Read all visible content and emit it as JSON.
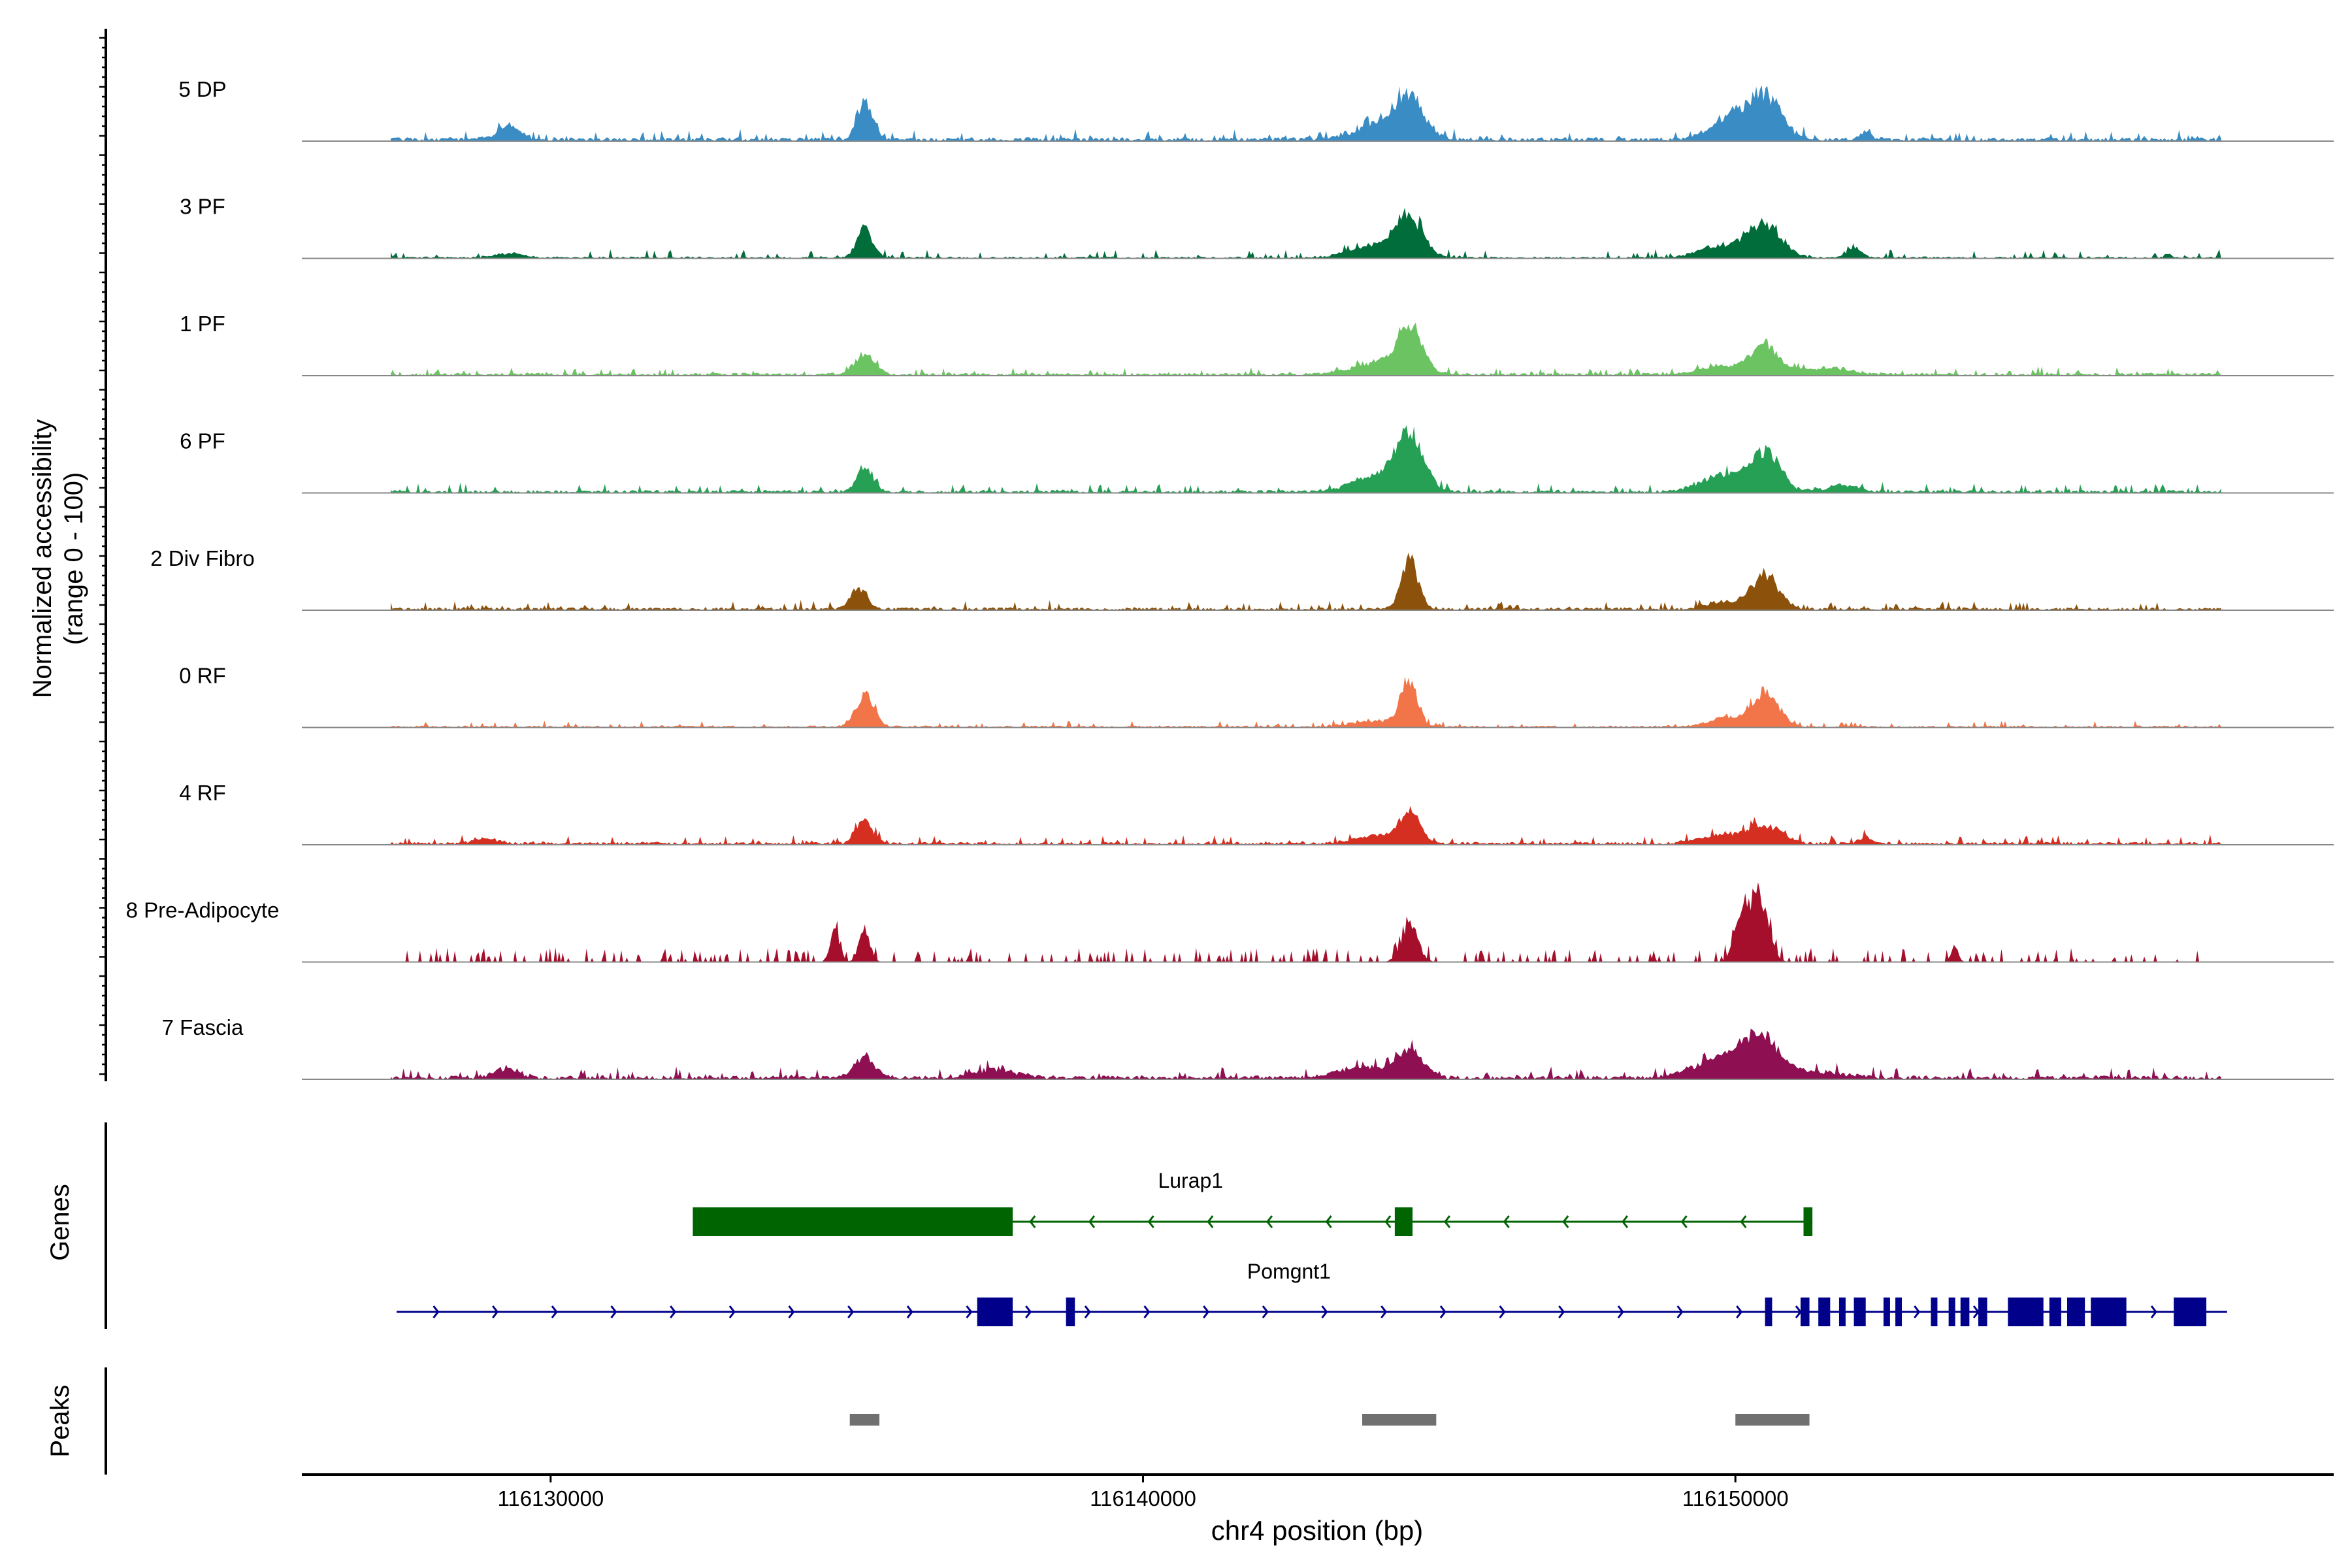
{
  "chart_data": {
    "type": "area",
    "title": "",
    "ylabel_lines": [
      "Normalized accessibility",
      "(range 0 - 100)"
    ],
    "xlabel": "chr4 position (bp)",
    "xlim": [
      116125800,
      116160100
    ],
    "ylim": [
      0,
      100
    ],
    "x_ticks": [
      116130000,
      116140000,
      116150000
    ],
    "x_tick_labels": [
      "116130000",
      "116140000",
      "116150000"
    ],
    "grid": false,
    "series": [
      {
        "name": "5 DP",
        "color": "#3A8CC4",
        "baseline": 0.04,
        "noise": 0.045,
        "peaks": [
          [
            116129300,
            0.16,
            200
          ],
          [
            116135300,
            0.45,
            130
          ],
          [
            116144500,
            0.43,
            220
          ],
          [
            116144100,
            0.2,
            450
          ],
          [
            116150500,
            0.55,
            270
          ],
          [
            116149900,
            0.25,
            330
          ],
          [
            116152200,
            0.1,
            90
          ]
        ]
      },
      {
        "name": "3 PF",
        "color": "#006D3B",
        "baseline": 0.02,
        "noise": 0.04,
        "peaks": [
          [
            116129300,
            0.05,
            250
          ],
          [
            116135300,
            0.35,
            130
          ],
          [
            116144500,
            0.5,
            220
          ],
          [
            116143900,
            0.15,
            400
          ],
          [
            116150500,
            0.42,
            270
          ],
          [
            116149800,
            0.15,
            380
          ],
          [
            116152000,
            0.12,
            130
          ],
          [
            116157300,
            0.06,
            50
          ]
        ]
      },
      {
        "name": "1 PF",
        "color": "#6BC362",
        "baseline": 0.03,
        "noise": 0.035,
        "peaks": [
          [
            116135300,
            0.25,
            170
          ],
          [
            116144500,
            0.55,
            200
          ],
          [
            116144000,
            0.15,
            450
          ],
          [
            116150500,
            0.35,
            230
          ],
          [
            116149800,
            0.1,
            380
          ],
          [
            116151500,
            0.08,
            450
          ]
        ]
      },
      {
        "name": "6 PF",
        "color": "#26A055",
        "baseline": 0.03,
        "noise": 0.045,
        "peaks": [
          [
            116135300,
            0.3,
            140
          ],
          [
            116144500,
            0.62,
            230
          ],
          [
            116144000,
            0.2,
            450
          ],
          [
            116150500,
            0.45,
            260
          ],
          [
            116149800,
            0.2,
            380
          ],
          [
            116151800,
            0.08,
            280
          ]
        ]
      },
      {
        "name": "2 Div Fibro",
        "color": "#8C510A",
        "baseline": 0.03,
        "noise": 0.04,
        "peaks": [
          [
            116135200,
            0.26,
            140
          ],
          [
            116144500,
            0.62,
            140
          ],
          [
            116150500,
            0.42,
            230
          ],
          [
            116149800,
            0.08,
            300
          ]
        ]
      },
      {
        "name": "0 RF",
        "color": "#F27449",
        "baseline": 0.02,
        "noise": 0.03,
        "peaks": [
          [
            116135300,
            0.4,
            150
          ],
          [
            116144500,
            0.58,
            130
          ],
          [
            116144000,
            0.08,
            400
          ],
          [
            116150500,
            0.42,
            230
          ],
          [
            116149800,
            0.1,
            280
          ]
        ]
      },
      {
        "name": "4 RF",
        "color": "#D42F20",
        "baseline": 0.03,
        "noise": 0.04,
        "peaks": [
          [
            116128900,
            0.06,
            200
          ],
          [
            116135300,
            0.28,
            140
          ],
          [
            116144500,
            0.38,
            170
          ],
          [
            116144000,
            0.1,
            380
          ],
          [
            116150500,
            0.22,
            280
          ],
          [
            116149800,
            0.1,
            380
          ],
          [
            116152200,
            0.07,
            120
          ]
        ]
      },
      {
        "name": "8 Pre-Adipocyte",
        "color": "#A50F2C",
        "baseline": 0.0,
        "noise": 0.0,
        "sparse": true,
        "peaks": [
          [
            116135300,
            0.42,
            90
          ],
          [
            116134800,
            0.38,
            80
          ],
          [
            116144500,
            0.45,
            140
          ],
          [
            116150400,
            0.85,
            150
          ],
          [
            116150100,
            0.6,
            120
          ],
          [
            116153700,
            0.18,
            60
          ]
        ]
      },
      {
        "name": "7 Fascia",
        "color": "#8E0F52",
        "baseline": 0.04,
        "noise": 0.05,
        "peaks": [
          [
            116129200,
            0.1,
            200
          ],
          [
            116135300,
            0.25,
            180
          ],
          [
            116137500,
            0.1,
            350
          ],
          [
            116144500,
            0.32,
            230
          ],
          [
            116143700,
            0.12,
            420
          ],
          [
            116150400,
            0.52,
            350
          ],
          [
            116149600,
            0.18,
            400
          ],
          [
            116151500,
            0.06,
            400
          ]
        ]
      }
    ],
    "gene_track": {
      "label": "Genes",
      "genes": [
        {
          "name": "Lurap1",
          "strand": "-",
          "color": "#006400",
          "start": 116132400,
          "end": 116151300,
          "exons": [
            [
              116132400,
              116137800
            ],
            [
              116144250,
              116144550
            ],
            [
              116151150,
              116151300
            ]
          ]
        },
        {
          "name": "Pomgnt1",
          "strand": "+",
          "color": "#00008B",
          "start": 116127400,
          "end": 116158300,
          "exons": [
            [
              116137200,
              116137800
            ],
            [
              116138700,
              116138850
            ],
            [
              116150500,
              116150620
            ],
            [
              116151100,
              116151250
            ],
            [
              116151400,
              116151600
            ],
            [
              116151750,
              116151850
            ],
            [
              116152000,
              116152200
            ],
            [
              116152500,
              116152600
            ],
            [
              116152700,
              116152800
            ],
            [
              116153300,
              116153400
            ],
            [
              116153600,
              116153700
            ],
            [
              116153800,
              116153950
            ],
            [
              116154100,
              116154250
            ],
            [
              116154600,
              116155200
            ],
            [
              116155300,
              116155500
            ],
            [
              116155600,
              116155900
            ],
            [
              116156000,
              116156600
            ],
            [
              116157400,
              116157950
            ]
          ]
        }
      ]
    },
    "peaks_track": {
      "label": "Peaks",
      "color": "#707070",
      "regions": [
        [
          116135050,
          116135550
        ],
        [
          116143700,
          116144950
        ],
        [
          116150000,
          116151250
        ]
      ]
    }
  }
}
